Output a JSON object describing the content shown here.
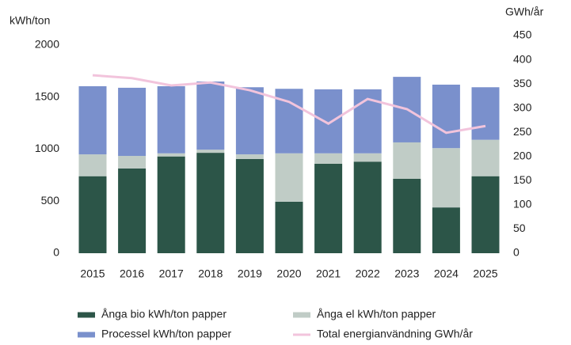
{
  "chart_data": {
    "type": "bar_line",
    "y_label": "kWh/ton",
    "y2_label": "GWh/år",
    "categories": [
      "2015",
      "2016",
      "2017",
      "2018",
      "2019",
      "2020",
      "2021",
      "2022",
      "2023",
      "2024",
      "2025"
    ],
    "series": [
      {
        "name": "Ånga bio kWh/ton papper",
        "color": "#2c5548",
        "type": "bar",
        "values": [
          740,
          815,
          930,
          965,
          905,
          495,
          860,
          880,
          715,
          440,
          740
        ]
      },
      {
        "name": "Ånga el kWh/ton papper",
        "color": "#c0ccc6",
        "type": "bar",
        "values": [
          210,
          120,
          30,
          30,
          45,
          465,
          100,
          80,
          350,
          570,
          350
        ]
      },
      {
        "name": "Processel kWh/ton papper",
        "color": "#7a90cc",
        "type": "bar",
        "values": [
          655,
          655,
          645,
          655,
          645,
          620,
          615,
          615,
          630,
          610,
          505
        ]
      },
      {
        "name": "Total energianvändning GWh/år",
        "color": "#f2c4dc",
        "type": "line",
        "axis": "y2",
        "values": [
          368,
          362,
          347,
          353,
          337,
          313,
          268,
          319,
          298,
          249,
          263
        ]
      }
    ],
    "ylim": [
      0,
      2000
    ],
    "yticks": [
      0,
      500,
      1000,
      1500,
      2000
    ],
    "y2lim": [
      0,
      450
    ],
    "y2ticks": [
      0,
      50,
      100,
      150,
      200,
      250,
      300,
      350,
      400,
      450
    ],
    "stacked": true,
    "grid": false
  }
}
